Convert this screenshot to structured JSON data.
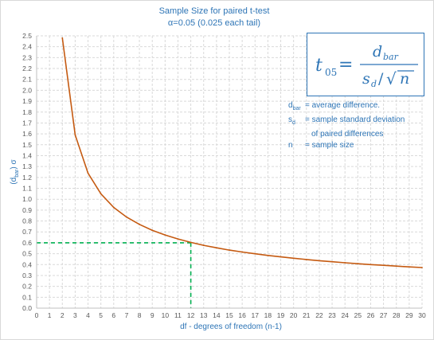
{
  "chart_data": {
    "type": "line",
    "title": "Sample Size for paired t-test",
    "subtitle": "α=0.05 (0.025 each tail)",
    "xlabel": "df - degrees of freedom (n-1)",
    "ylabel": "(dbar) σ",
    "ylabel_base": "(d",
    "ylabel_sub": "bar",
    "ylabel_tail": ") σ",
    "xlim": [
      0,
      30
    ],
    "ylim": [
      0,
      2.5
    ],
    "x_ticks": [
      0,
      1,
      2,
      3,
      4,
      5,
      6,
      7,
      8,
      9,
      10,
      11,
      12,
      13,
      14,
      15,
      16,
      17,
      18,
      19,
      20,
      21,
      22,
      23,
      24,
      25,
      26,
      27,
      28,
      29,
      30
    ],
    "y_ticks": [
      "0.0",
      "0.1",
      "0.2",
      "0.3",
      "0.4",
      "0.5",
      "0.6",
      "0.7",
      "0.8",
      "0.9",
      "1.0",
      "1.1",
      "1.2",
      "1.3",
      "1.4",
      "1.5",
      "1.6",
      "1.7",
      "1.8",
      "1.9",
      "2.0",
      "2.1",
      "2.2",
      "2.3",
      "2.4",
      "2.5"
    ],
    "grid": true,
    "line_color": "#c55a11",
    "reference_color": "#00b050",
    "reference_point": {
      "x": 12,
      "y": 0.6
    },
    "series": [
      {
        "x": [
          2,
          3,
          4,
          5,
          6,
          7,
          8,
          9,
          10,
          11,
          12,
          13,
          14,
          15,
          16,
          17,
          18,
          19,
          20,
          21,
          22,
          23,
          24,
          25,
          26,
          27,
          28,
          29,
          30
        ],
        "values": [
          2.48,
          1.59,
          1.24,
          1.05,
          0.925,
          0.836,
          0.769,
          0.715,
          0.672,
          0.635,
          0.604,
          0.577,
          0.554,
          0.533,
          0.515,
          0.499,
          0.484,
          0.471,
          0.458,
          0.447,
          0.436,
          0.426,
          0.417,
          0.408,
          0.4,
          0.393,
          0.386,
          0.379,
          0.373
        ]
      }
    ]
  },
  "formula": {
    "lhs": "t",
    "lhs_sub": "05",
    "equals": "=",
    "numerator": "d",
    "numerator_sub": "bar",
    "denominator": "s",
    "denominator_sub": "d",
    "slash": "/",
    "radical": "√",
    "radicand": "n"
  },
  "legend": [
    {
      "symbol": "d",
      "symbol_sub": "bar",
      "text": "= average difference."
    },
    {
      "symbol": "s",
      "symbol_sub": "d",
      "text": "= sample standard deviation",
      "continuation": "of paired differences"
    },
    {
      "symbol": "n",
      "symbol_sub": "",
      "text": "= sample size"
    }
  ]
}
